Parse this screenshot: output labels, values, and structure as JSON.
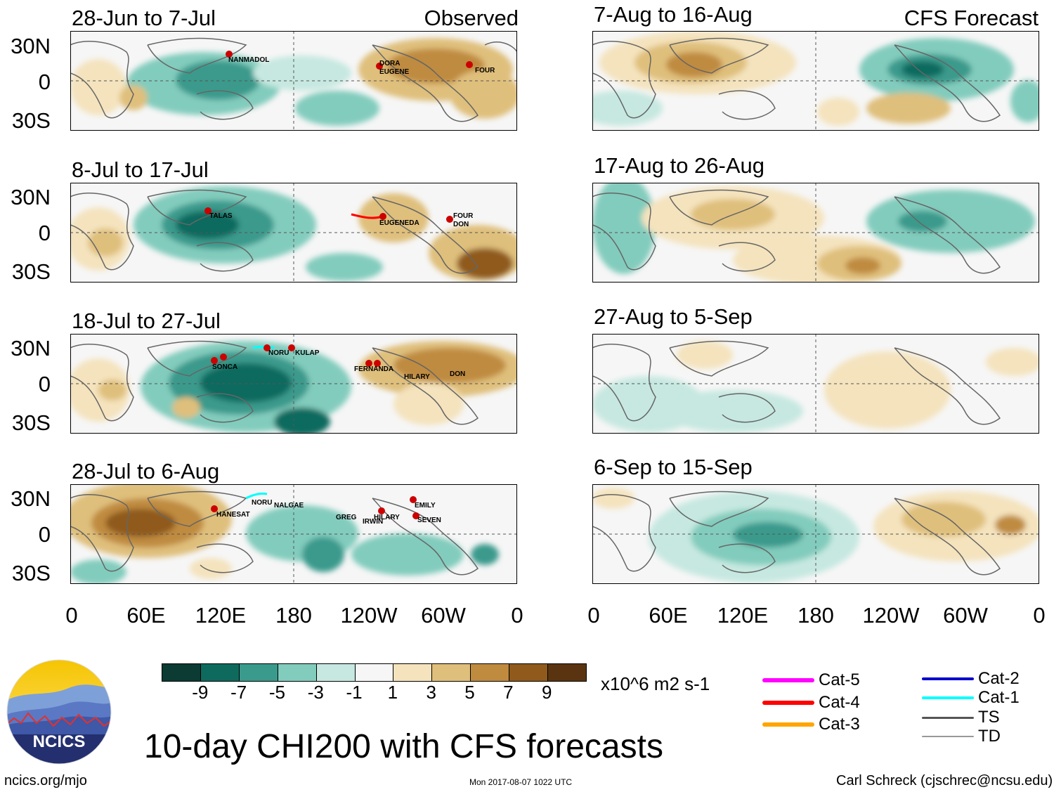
{
  "main_title": "10-day CHI200 with CFS forecasts",
  "labels": {
    "observed": "Observed",
    "forecast": "CFS Forecast"
  },
  "lat_ticks": [
    "30N",
    "0",
    "30S"
  ],
  "lon_ticks": [
    "0",
    "60E",
    "120E",
    "180",
    "120W",
    "60W",
    "0"
  ],
  "panels": {
    "left": [
      {
        "title": "28-Jun to 7-Jul",
        "storms": [
          "NANMADOL",
          "DORA",
          "EUGENE",
          "FOUR"
        ]
      },
      {
        "title": "8-Jul to 17-Jul",
        "storms": [
          "TALAS",
          "EUGENEDA",
          "FOUR",
          "DON"
        ]
      },
      {
        "title": "18-Jul to 27-Jul",
        "storms": [
          "SONCA",
          "KULAP",
          "NORU",
          "FERNANDA",
          "HILARY",
          "DON"
        ]
      },
      {
        "title": "28-Jul to 6-Aug",
        "storms": [
          "HANESAT",
          "NORU",
          "NALGAE",
          "GREG",
          "IRWIN",
          "HILARY",
          "EMILY",
          "SEVEN"
        ]
      }
    ],
    "right": [
      {
        "title": "7-Aug to 16-Aug"
      },
      {
        "title": "17-Aug to 26-Aug"
      },
      {
        "title": "27-Aug to 5-Sep"
      },
      {
        "title": "6-Sep to 15-Sep"
      }
    ]
  },
  "colorbar": {
    "units": "x10^6 m2 s-1",
    "tick_labels": [
      "-9",
      "-7",
      "-5",
      "-3",
      "-1",
      "1",
      "3",
      "5",
      "7",
      "9"
    ],
    "colors": [
      "#0b3b33",
      "#0f6a5e",
      "#3a9a8c",
      "#82ccbd",
      "#c6e8e0",
      "#f6f6f6",
      "#f4e3bd",
      "#dfbf7c",
      "#bf8b3f",
      "#8f5a1b",
      "#5a3410"
    ]
  },
  "legend": {
    "items": [
      {
        "label": "Cat-5",
        "color": "#ff00ff"
      },
      {
        "label": "Cat-4",
        "color": "#ff0000"
      },
      {
        "label": "Cat-3",
        "color": "#ffa500"
      },
      {
        "label": "Cat-2",
        "color": "#0000cc"
      },
      {
        "label": "Cat-1",
        "color": "#00ffff"
      },
      {
        "label": "TS",
        "color": "#555555"
      },
      {
        "label": "TD",
        "color": "#999999"
      }
    ]
  },
  "logo": {
    "text": "NCICS"
  },
  "footer": {
    "url": "ncics.org/mjo",
    "timestamp": "Mon 2017-08-07 1022 UTC",
    "author": "Carl Schreck (cjschrec@ncsu.edu)"
  }
}
